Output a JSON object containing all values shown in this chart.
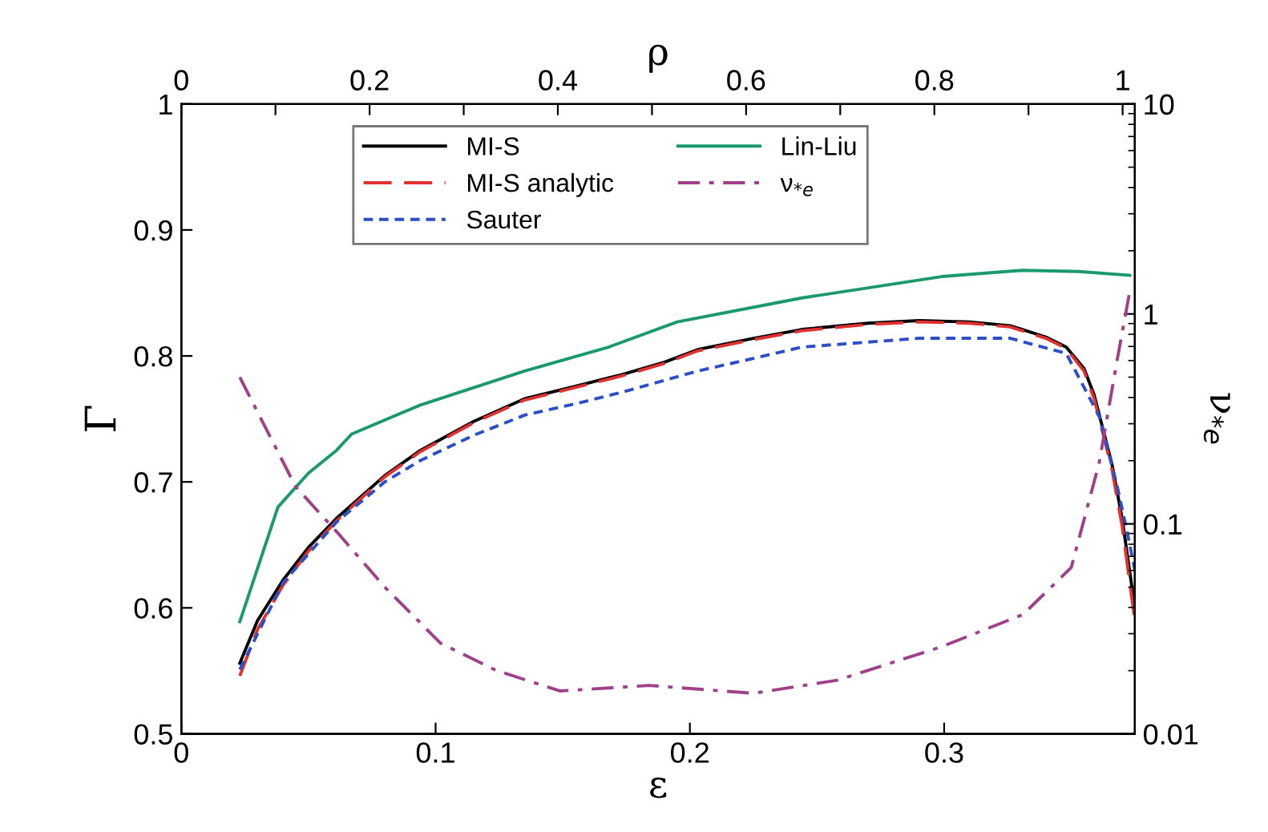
{
  "chart_data": {
    "type": "line",
    "xlabel": "ε",
    "ylabel": "Γ",
    "y2label": "ν$_{*e}$",
    "x2label": "ρ",
    "xlim": [
      0,
      0.375
    ],
    "xticks": [
      0,
      0.1,
      0.2,
      0.3
    ],
    "ylim": [
      0.5,
      1
    ],
    "yticks": [
      0.5,
      0.6,
      0.7,
      0.8,
      0.9,
      1
    ],
    "y2lim": [
      0.01,
      10
    ],
    "y2ticks": [
      0.01,
      0.1,
      1,
      10
    ],
    "log": "y2",
    "x2lim": [
      0,
      1.013
    ],
    "x2ticks": [
      0,
      {
        "value": 0.1,
        "label": null
      },
      0.2,
      {
        "value": 0.3,
        "label": null
      },
      0.4,
      {
        "value": 0.5,
        "label": null
      },
      0.6,
      {
        "value": 0.7,
        "label": null
      },
      0.8,
      {
        "value": 0.9,
        "label": null
      },
      1
    ],
    "legend": "top",
    "grid": false,
    "series": [
      {
        "name": "MI-S",
        "color": "#000000",
        "line_style": "solid",
        "x": [
          0.023,
          0.03,
          0.04,
          0.05,
          0.061,
          0.08,
          0.094,
          0.115,
          0.135,
          0.155,
          0.173,
          0.19,
          0.203,
          0.225,
          0.244,
          0.27,
          0.29,
          0.31,
          0.326,
          0.34,
          0.348,
          0.355,
          0.359,
          0.366,
          0.37,
          0.375
        ],
        "values": [
          0.556,
          0.59,
          0.622,
          0.648,
          0.671,
          0.705,
          0.725,
          0.748,
          0.766,
          0.776,
          0.785,
          0.795,
          0.805,
          0.814,
          0.821,
          0.826,
          0.828,
          0.827,
          0.824,
          0.815,
          0.807,
          0.79,
          0.769,
          0.714,
          0.671,
          0.6
        ]
      },
      {
        "name": "MI-S analytic",
        "color": "#e03030",
        "line_style": "longdash",
        "x": [
          0.023,
          0.03,
          0.04,
          0.05,
          0.061,
          0.08,
          0.094,
          0.115,
          0.135,
          0.155,
          0.173,
          0.19,
          0.203,
          0.225,
          0.244,
          0.27,
          0.29,
          0.31,
          0.326,
          0.34,
          0.348,
          0.355,
          0.359,
          0.366,
          0.37,
          0.375
        ],
        "values": [
          0.546,
          0.583,
          0.618,
          0.645,
          0.669,
          0.704,
          0.724,
          0.747,
          0.765,
          0.775,
          0.784,
          0.794,
          0.804,
          0.813,
          0.82,
          0.825,
          0.827,
          0.826,
          0.823,
          0.814,
          0.806,
          0.788,
          0.766,
          0.71,
          0.665,
          0.59
        ]
      },
      {
        "name": "Sauter",
        "color": "#2a4fc8",
        "line_style": "dashed",
        "x": [
          0.023,
          0.04,
          0.061,
          0.08,
          0.094,
          0.115,
          0.135,
          0.155,
          0.173,
          0.203,
          0.225,
          0.244,
          0.29,
          0.326,
          0.348,
          0.361,
          0.368,
          0.372,
          0.375
        ],
        "values": [
          0.551,
          0.62,
          0.668,
          0.7,
          0.717,
          0.737,
          0.753,
          0.762,
          0.771,
          0.788,
          0.798,
          0.807,
          0.814,
          0.814,
          0.802,
          0.752,
          0.697,
          0.66,
          0.63
        ]
      },
      {
        "name": "Lin-Liu",
        "color": "#1a9a6a",
        "line_style": "solid",
        "x": [
          0.023,
          0.038,
          0.05,
          0.061,
          0.067,
          0.094,
          0.135,
          0.168,
          0.195,
          0.244,
          0.299,
          0.331,
          0.353,
          0.373
        ],
        "values": [
          0.589,
          0.68,
          0.707,
          0.725,
          0.738,
          0.761,
          0.788,
          0.807,
          0.827,
          0.846,
          0.863,
          0.868,
          0.867,
          0.864
        ]
      },
      {
        "name": "ν$_{*e}$",
        "color": "#a0408a",
        "line_style": "dashdot",
        "axis": "y2",
        "x": [
          0.023,
          0.045,
          0.061,
          0.08,
          0.102,
          0.124,
          0.149,
          0.184,
          0.225,
          0.258,
          0.299,
          0.331,
          0.35,
          0.361,
          0.368,
          0.373
        ],
        "values": [
          0.5,
          0.15,
          0.092,
          0.05,
          0.027,
          0.02,
          0.016,
          0.017,
          0.0156,
          0.018,
          0.026,
          0.037,
          0.062,
          0.196,
          0.6,
          1.28
        ]
      }
    ]
  }
}
